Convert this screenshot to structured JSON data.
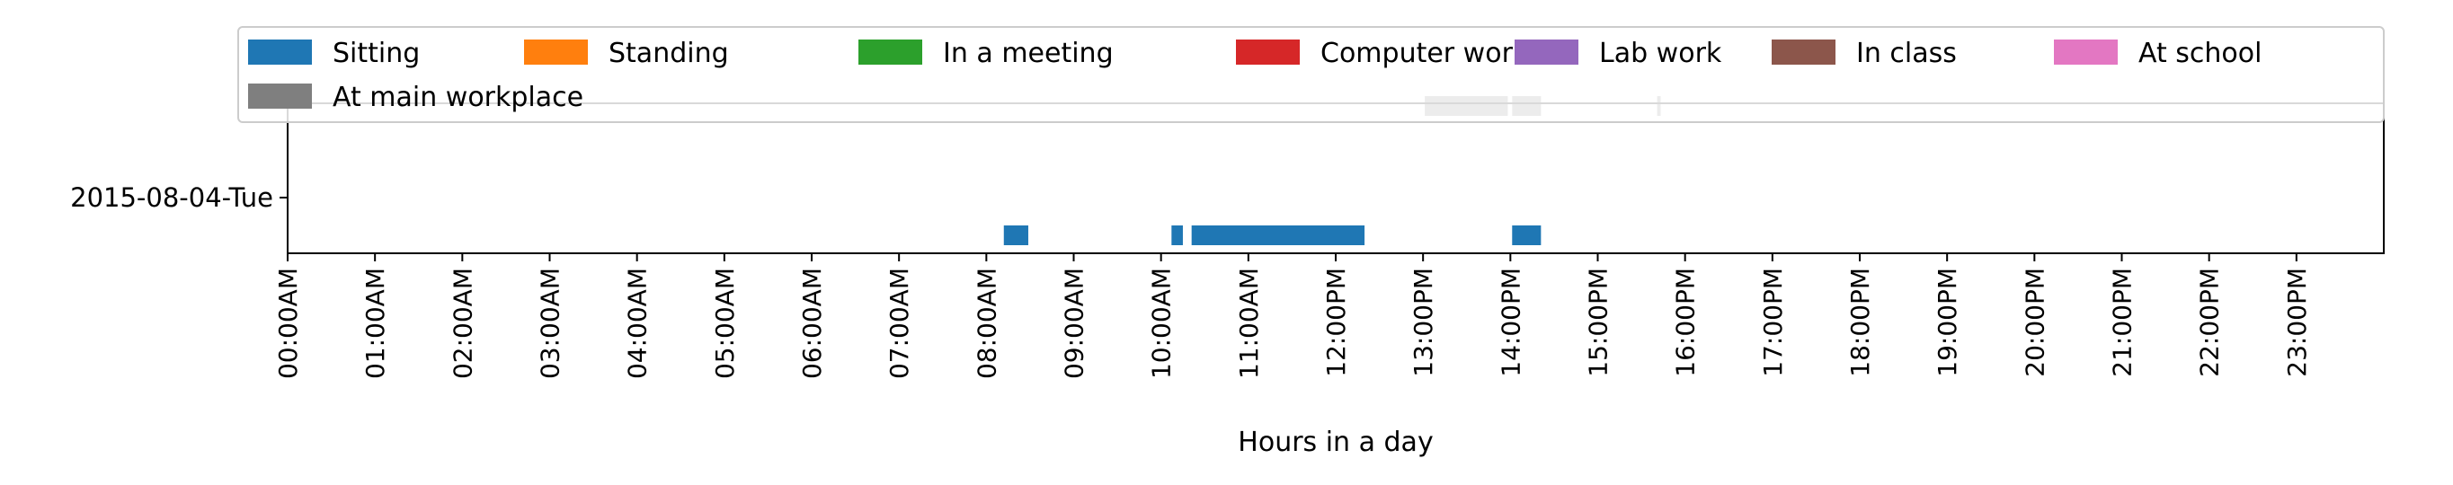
{
  "chart_data": {
    "type": "timeline",
    "xlabel": "Hours in a day",
    "xlim": [
      0,
      24
    ],
    "x_ticks": [
      0,
      1,
      2,
      3,
      4,
      5,
      6,
      7,
      8,
      9,
      10,
      11,
      12,
      13,
      14,
      15,
      16,
      17,
      18,
      19,
      20,
      21,
      22,
      23
    ],
    "x_tick_labels": [
      "00:00AM",
      "01:00AM",
      "02:00AM",
      "03:00AM",
      "04:00AM",
      "05:00AM",
      "06:00AM",
      "07:00AM",
      "08:00AM",
      "09:00AM",
      "10:00AM",
      "11:00AM",
      "12:00PM",
      "13:00PM",
      "14:00PM",
      "15:00PM",
      "16:00PM",
      "17:00PM",
      "18:00PM",
      "19:00PM",
      "20:00PM",
      "21:00PM",
      "22:00PM",
      "23:00PM"
    ],
    "y_tick_labels": [
      "2015-08-04-Tue"
    ],
    "grid": false,
    "legend_position": "top",
    "series": [
      {
        "name": "Sitting",
        "color": "#1f77b4",
        "row": 0,
        "intervals": [
          [
            8.2,
            8.48
          ],
          [
            10.12,
            10.25
          ],
          [
            10.35,
            12.33
          ],
          [
            14.02,
            14.35
          ]
        ]
      },
      {
        "name": "Standing",
        "color": "#ff7f0e",
        "row": 0,
        "intervals": []
      },
      {
        "name": "In a meeting",
        "color": "#2ca02c",
        "row": 0,
        "intervals": []
      },
      {
        "name": "Computer work",
        "color": "#d62728",
        "row": 0,
        "intervals": []
      },
      {
        "name": "Lab work",
        "color": "#9467bd",
        "row": 0,
        "intervals": []
      },
      {
        "name": "In class",
        "color": "#8c564b",
        "row": 0,
        "intervals": []
      },
      {
        "name": "At school",
        "color": "#e377c2",
        "row": 0,
        "intervals": []
      },
      {
        "name": "At main workplace",
        "color": "#7f7f7f",
        "row": 6,
        "intervals": [
          [
            13.02,
            13.97
          ],
          [
            14.02,
            14.35
          ],
          [
            15.68,
            15.72
          ]
        ]
      }
    ]
  }
}
